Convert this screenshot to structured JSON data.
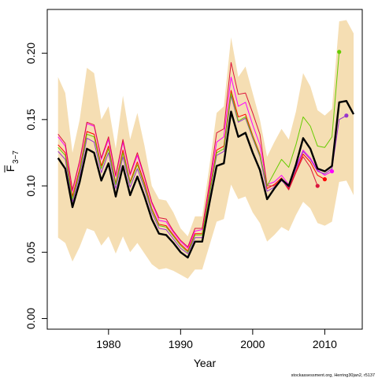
{
  "chart_data": {
    "type": "line",
    "xlabel": "Year",
    "ylabel_main": "F",
    "ylabel_sub": "3−7",
    "credit": "stockassessment.org, Herring30jan2, r5137",
    "xlim": [
      1971.5,
      2015.2
    ],
    "ylim": [
      -0.008,
      0.233
    ],
    "x_ticks": [
      1980,
      1990,
      2000,
      2010
    ],
    "y_ticks": [
      0.0,
      0.05,
      0.1,
      0.15,
      0.2
    ],
    "y_tick_labels": [
      "0.00",
      "0.05",
      "0.10",
      "0.15",
      "0.20"
    ],
    "colors": {
      "band": "#f5deb3",
      "main": "#000000",
      "retro": [
        "#ff0000",
        "#ff00ff",
        "#dc143c",
        "#9932cc",
        "#66cc00"
      ]
    },
    "band": {
      "x": [
        1973,
        1974,
        1975,
        1976,
        1977,
        1978,
        1979,
        1980,
        1981,
        1982,
        1983,
        1984,
        1985,
        1986,
        1987,
        1988,
        1989,
        1990,
        1991,
        1992,
        1993,
        1994,
        1995,
        1996,
        1997,
        1998,
        1999,
        2000,
        2001,
        2002,
        2003,
        2004,
        2005,
        2006,
        2007,
        2008,
        2009,
        2010,
        2011,
        2012,
        2013,
        2014
      ],
      "upper": [
        0.182,
        0.17,
        0.125,
        0.15,
        0.189,
        0.185,
        0.15,
        0.16,
        0.128,
        0.168,
        0.135,
        0.155,
        0.13,
        0.1,
        0.09,
        0.089,
        0.08,
        0.068,
        0.062,
        0.077,
        0.077,
        0.115,
        0.155,
        0.16,
        0.212,
        0.182,
        0.19,
        0.17,
        0.15,
        0.122,
        0.133,
        0.143,
        0.135,
        0.156,
        0.185,
        0.175,
        0.157,
        0.153,
        0.158,
        0.224,
        0.225,
        0.215
      ],
      "lower": [
        0.061,
        0.057,
        0.043,
        0.054,
        0.068,
        0.066,
        0.055,
        0.062,
        0.049,
        0.062,
        0.05,
        0.057,
        0.049,
        0.041,
        0.037,
        0.038,
        0.036,
        0.033,
        0.03,
        0.037,
        0.037,
        0.055,
        0.073,
        0.075,
        0.101,
        0.09,
        0.092,
        0.08,
        0.072,
        0.058,
        0.063,
        0.069,
        0.066,
        0.078,
        0.088,
        0.083,
        0.072,
        0.07,
        0.073,
        0.103,
        0.104,
        0.093
      ]
    },
    "series": [
      {
        "x": [
          1973,
          1974,
          1975,
          1976,
          1977,
          1978,
          1979,
          1980,
          1981,
          1982,
          1983,
          1984,
          1985,
          1986,
          1987,
          1988,
          1989,
          1990,
          1991,
          1992,
          1993,
          1994,
          1995,
          1996,
          1997,
          1998,
          1999,
          2000,
          2001,
          2002,
          2003,
          2004,
          2005,
          2006,
          2007,
          2008,
          2009,
          2010,
          2011,
          2012,
          2013,
          2014
        ],
        "values": [
          0.121,
          0.113,
          0.084,
          0.103,
          0.128,
          0.125,
          0.104,
          0.117,
          0.092,
          0.115,
          0.093,
          0.107,
          0.092,
          0.075,
          0.064,
          0.063,
          0.057,
          0.05,
          0.046,
          0.058,
          0.058,
          0.087,
          0.115,
          0.117,
          0.156,
          0.137,
          0.14,
          0.125,
          0.112,
          0.09,
          0.098,
          0.105,
          0.1,
          0.116,
          0.136,
          0.128,
          0.113,
          0.111,
          0.115,
          0.163,
          0.164,
          0.154
        ],
        "color": "#000000",
        "width": 2.4,
        "end_marker": false
      },
      {
        "x": [
          1973,
          1974,
          1975,
          1976,
          1977,
          1978,
          1979,
          1980,
          1981,
          1982,
          1983,
          1984,
          1985,
          1986,
          1987,
          1988,
          1989,
          1990,
          1991,
          1992,
          1993,
          1994,
          1995,
          1996,
          1997,
          1998,
          1999,
          2000,
          2001,
          2002,
          2003,
          2004,
          2005,
          2006,
          2007,
          2008,
          2009,
          2010
        ],
        "values": [
          0.131,
          0.125,
          0.092,
          0.113,
          0.141,
          0.139,
          0.115,
          0.13,
          0.102,
          0.127,
          0.103,
          0.118,
          0.102,
          0.083,
          0.071,
          0.07,
          0.063,
          0.056,
          0.051,
          0.064,
          0.064,
          0.096,
          0.127,
          0.13,
          0.172,
          0.152,
          0.154,
          0.138,
          0.124,
          0.098,
          0.101,
          0.106,
          0.098,
          0.111,
          0.124,
          0.118,
          0.108,
          0.105
        ],
        "color": "#ff0000",
        "width": 1.0,
        "end_marker": true
      },
      {
        "x": [
          1973,
          1974,
          1975,
          1976,
          1977,
          1978,
          1979,
          1980,
          1981,
          1982,
          1983,
          1984,
          1985,
          1986,
          1987,
          1988,
          1989,
          1990,
          1991,
          1992,
          1993,
          1994,
          1995,
          1996,
          1997,
          1998,
          1999,
          2000,
          2001,
          2002,
          2003,
          2004,
          2005,
          2006,
          2007,
          2008,
          2009,
          2010,
          2011
        ],
        "values": [
          0.137,
          0.13,
          0.096,
          0.118,
          0.147,
          0.145,
          0.12,
          0.135,
          0.107,
          0.133,
          0.108,
          0.123,
          0.106,
          0.087,
          0.074,
          0.073,
          0.065,
          0.058,
          0.053,
          0.066,
          0.067,
          0.1,
          0.133,
          0.137,
          0.182,
          0.16,
          0.163,
          0.146,
          0.131,
          0.101,
          0.103,
          0.108,
          0.101,
          0.114,
          0.127,
          0.121,
          0.112,
          0.108,
          0.111
        ],
        "color": "#ff00ff",
        "width": 1.0,
        "end_marker": true
      },
      {
        "x": [
          1973,
          1974,
          1975,
          1976,
          1977,
          1978,
          1979,
          1980,
          1981,
          1982,
          1983,
          1984,
          1985,
          1986,
          1987,
          1988,
          1989,
          1990,
          1991,
          1992,
          1993,
          1994,
          1995,
          1996,
          1997,
          1998,
          1999,
          2000,
          2001,
          2002,
          2003,
          2004,
          2005,
          2006,
          2007,
          2008,
          2009
        ],
        "values": [
          0.139,
          0.132,
          0.097,
          0.119,
          0.148,
          0.146,
          0.121,
          0.137,
          0.108,
          0.135,
          0.109,
          0.125,
          0.107,
          0.088,
          0.076,
          0.075,
          0.066,
          0.059,
          0.054,
          0.068,
          0.068,
          0.102,
          0.14,
          0.143,
          0.193,
          0.169,
          0.17,
          0.155,
          0.139,
          0.1,
          0.1,
          0.105,
          0.097,
          0.11,
          0.122,
          0.114,
          0.1
        ],
        "color": "#dc143c",
        "width": 1.0,
        "end_marker": true
      },
      {
        "x": [
          1973,
          1974,
          1975,
          1976,
          1977,
          1978,
          1979,
          1980,
          1981,
          1982,
          1983,
          1984,
          1985,
          1986,
          1987,
          1988,
          1989,
          1990,
          1991,
          1992,
          1993,
          1994,
          1995,
          1996,
          1997,
          1998,
          1999,
          2000,
          2001,
          2002,
          2003,
          2004,
          2005,
          2006,
          2007,
          2008,
          2009,
          2010,
          2011,
          2012,
          2013
        ],
        "values": [
          0.126,
          0.12,
          0.088,
          0.108,
          0.136,
          0.133,
          0.11,
          0.125,
          0.098,
          0.122,
          0.099,
          0.113,
          0.098,
          0.08,
          0.068,
          0.067,
          0.06,
          0.053,
          0.049,
          0.061,
          0.061,
          0.093,
          0.123,
          0.126,
          0.168,
          0.148,
          0.151,
          0.136,
          0.122,
          0.096,
          0.099,
          0.104,
          0.099,
          0.113,
          0.126,
          0.12,
          0.111,
          0.109,
          0.113,
          0.15,
          0.153
        ],
        "color": "#9932cc",
        "width": 1.0,
        "end_marker": true
      },
      {
        "x": [
          1973,
          1974,
          1975,
          1976,
          1977,
          1978,
          1979,
          1980,
          1981,
          1982,
          1983,
          1984,
          1985,
          1986,
          1987,
          1988,
          1989,
          1990,
          1991,
          1992,
          1993,
          1994,
          1995,
          1996,
          1997,
          1998,
          1999,
          2000,
          2001,
          2002,
          2003,
          2004,
          2005,
          2006,
          2007,
          2008,
          2009,
          2010,
          2011,
          2012
        ],
        "values": [
          0.129,
          0.123,
          0.09,
          0.111,
          0.139,
          0.137,
          0.113,
          0.128,
          0.101,
          0.125,
          0.102,
          0.116,
          0.1,
          0.082,
          0.07,
          0.069,
          0.062,
          0.055,
          0.05,
          0.063,
          0.063,
          0.094,
          0.125,
          0.128,
          0.17,
          0.149,
          0.152,
          0.137,
          0.123,
          0.1,
          0.11,
          0.12,
          0.114,
          0.131,
          0.152,
          0.145,
          0.13,
          0.129,
          0.137,
          0.201
        ],
        "color": "#66cc00",
        "width": 1.0,
        "end_marker": true
      }
    ]
  }
}
